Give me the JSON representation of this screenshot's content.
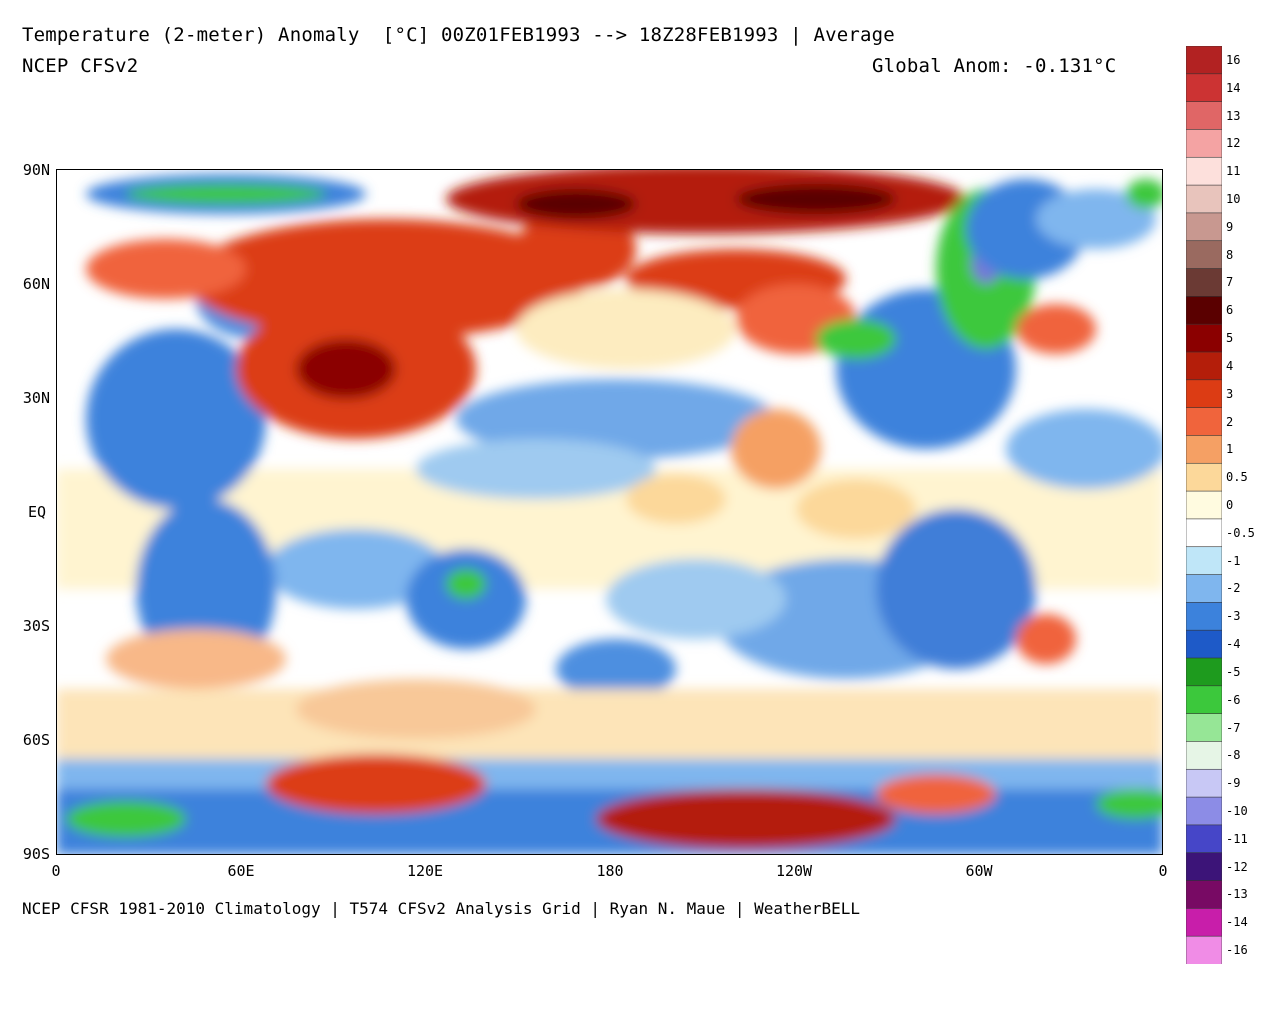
{
  "header": {
    "title": "Temperature (2-meter) Anomaly  [°C] 00Z01FEB1993 --> 18Z28FEB1993 | Average",
    "model": "NCEP CFSv2",
    "global_anom": "Global Anom: -0.131°C"
  },
  "footer": "NCEP CFSR 1981-2010 Climatology | T574 CFSv2 Analysis Grid | Ryan N. Maue | WeatherBELL",
  "axes": {
    "y_labels": [
      "90N",
      "60N",
      "30N",
      "EQ",
      "30S",
      "60S",
      "90S"
    ],
    "x_labels": [
      "0",
      "60E",
      "120E",
      "180",
      "120W",
      "60W",
      "0"
    ]
  },
  "legend": {
    "entries": [
      {
        "label": "16",
        "color": "#b22222"
      },
      {
        "label": "14",
        "color": "#cc3333"
      },
      {
        "label": "13",
        "color": "#e06666"
      },
      {
        "label": "12",
        "color": "#f4a3a3"
      },
      {
        "label": "11",
        "color": "#fde0dc"
      },
      {
        "label": "10",
        "color": "#e8c4bc"
      },
      {
        "label": "9",
        "color": "#c89890"
      },
      {
        "label": "8",
        "color": "#9a6a60"
      },
      {
        "label": "7",
        "color": "#6b3a34"
      },
      {
        "label": "6",
        "color": "#5a0000"
      },
      {
        "label": "5",
        "color": "#8b0000"
      },
      {
        "label": "4",
        "color": "#b41e0a"
      },
      {
        "label": "3",
        "color": "#dc3c14"
      },
      {
        "label": "2",
        "color": "#f0643c"
      },
      {
        "label": "1",
        "color": "#f5a064"
      },
      {
        "label": "0.5",
        "color": "#fcd89a"
      },
      {
        "label": "0",
        "color": "#fffbe0"
      },
      {
        "label": "-0.5",
        "color": "#ffffff"
      },
      {
        "label": "-1",
        "color": "#bfe6f8"
      },
      {
        "label": "-2",
        "color": "#7fb6ee"
      },
      {
        "label": "-3",
        "color": "#3c82dc"
      },
      {
        "label": "-4",
        "color": "#1e5ac8"
      },
      {
        "label": "-5",
        "color": "#1e9b1e"
      },
      {
        "label": "-6",
        "color": "#3cc83c"
      },
      {
        "label": "-7",
        "color": "#96e696"
      },
      {
        "label": "-8",
        "color": "#e6f5e6"
      },
      {
        "label": "-9",
        "color": "#c8c8f5"
      },
      {
        "label": "-10",
        "color": "#8c8ce6"
      },
      {
        "label": "-11",
        "color": "#4646c8"
      },
      {
        "label": "-12",
        "color": "#3c1478"
      },
      {
        "label": "-13",
        "color": "#780a64"
      },
      {
        "label": "-14",
        "color": "#c81eaa"
      },
      {
        "label": "-16",
        "color": "#f08ce6"
      }
    ]
  }
}
